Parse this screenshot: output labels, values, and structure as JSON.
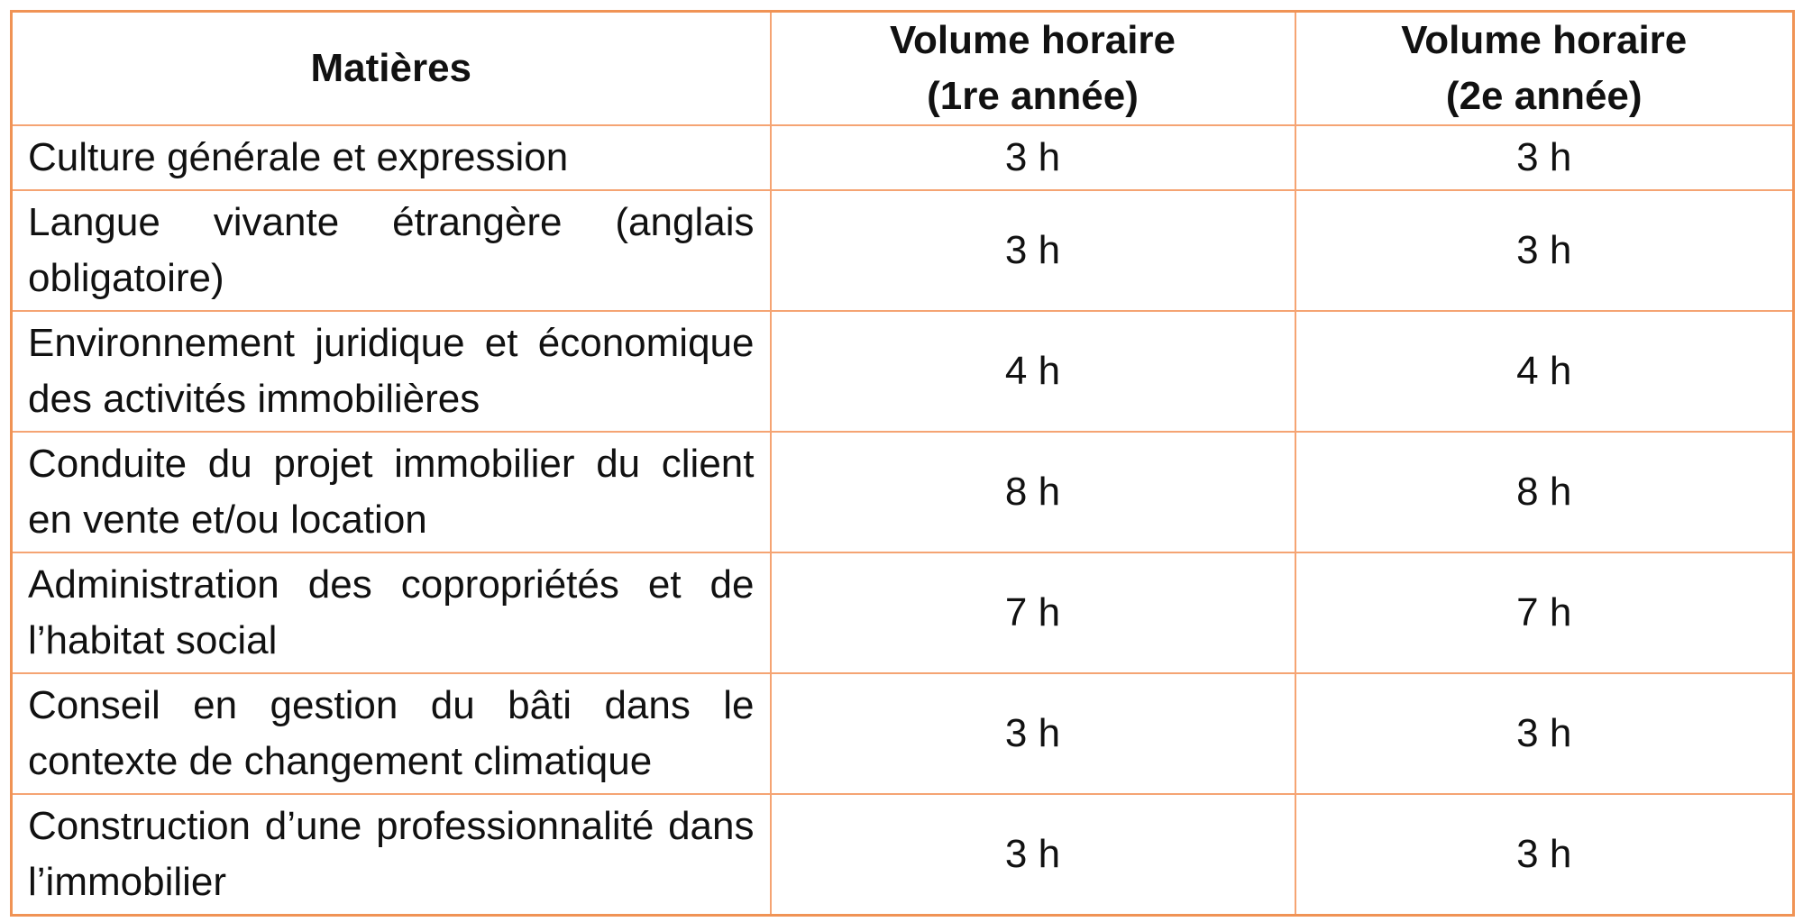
{
  "document": {
    "type": "course-hours-table",
    "language": "fr"
  },
  "colors": {
    "outer_border": "#f09355",
    "inner_border": "#f5a473",
    "header_rule": "#f3b392",
    "text": "#111111",
    "background": "#ffffff"
  },
  "header": {
    "matieres": "Matières",
    "vh1": {
      "line1": "Volume horaire",
      "line2": "(1re année)"
    },
    "vh2": {
      "line1": "Volume horaire",
      "line2": "(2e année)"
    }
  },
  "table": {
    "rows": [
      {
        "matiere": "Culture générale et expression",
        "y1": "3 h",
        "y2": "3 h"
      },
      {
        "matiere": "Langue vivante étrangère (anglais obligatoire)",
        "y1": "3 h",
        "y2": "3 h"
      },
      {
        "matiere": "Environnement juridique et économique des activités immobilières",
        "y1": "4 h",
        "y2": "4 h"
      },
      {
        "matiere": "Conduite du projet immobilier du client en vente et/ou location",
        "y1": "8 h",
        "y2": "8 h"
      },
      {
        "matiere": "Administration des copropriétés et de l’habitat social",
        "y1": "7 h",
        "y2": "7 h"
      },
      {
        "matiere": "Conseil en gestion du bâti dans le contexte de changement climatique",
        "y1": "3 h",
        "y2": "3 h"
      },
      {
        "matiere": "Construction d’une professionnalité dans l’immobilier",
        "y1": "3 h",
        "y2": "3 h"
      }
    ]
  }
}
